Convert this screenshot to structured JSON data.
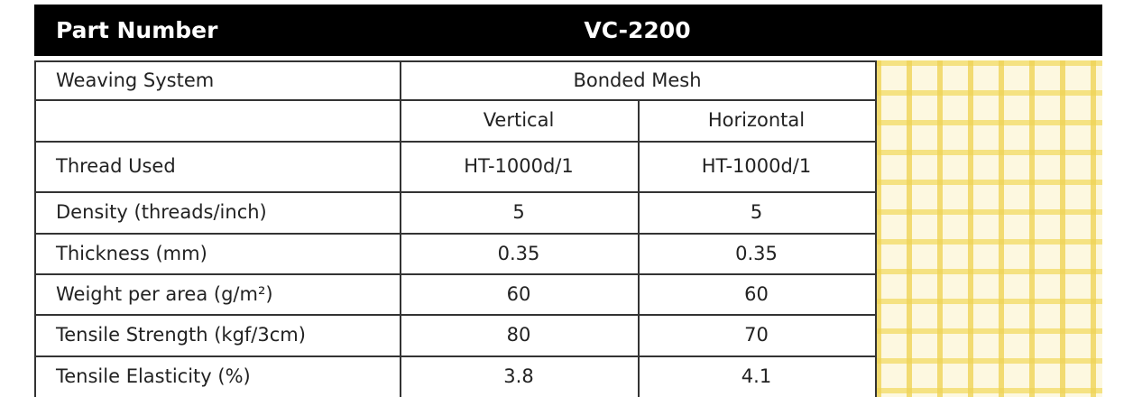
{
  "header": {
    "label": "Part Number",
    "part_number": "VC-2200"
  },
  "weaving_system": {
    "label": "Weaving System",
    "value": "Bonded Mesh"
  },
  "columns": [
    "Vertical",
    "Horizontal"
  ],
  "rows": [
    {
      "label": "Thread Used",
      "values": [
        "HT-1000d/1",
        "HT-1000d/1"
      ]
    },
    {
      "label": "Density (threads/inch)",
      "values": [
        5,
        5
      ]
    },
    {
      "label": "Thickness (mm)",
      "values": [
        0.35,
        0.35
      ]
    },
    {
      "label": "Weight per area (g/m²)",
      "values": [
        60,
        60
      ]
    },
    {
      "label": "Tensile Strength (kgf/3cm)",
      "values": [
        80,
        70
      ]
    },
    {
      "label": "Tensile Elasticity (%)",
      "values": [
        3.8,
        4.1
      ]
    }
  ]
}
